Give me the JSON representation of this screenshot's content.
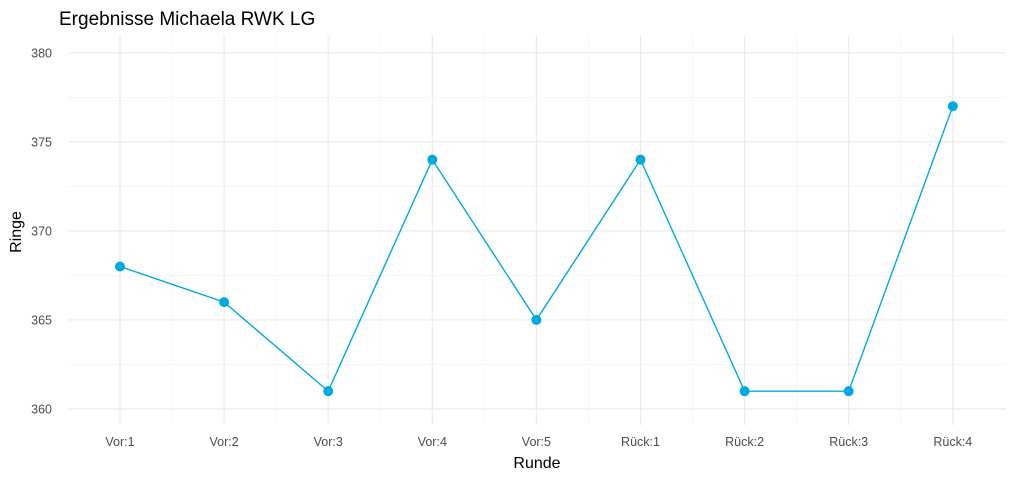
{
  "chart_data": {
    "type": "line",
    "title": "Ergebnisse Michaela RWK LG",
    "xlabel": "Runde",
    "ylabel": "Ringe",
    "categories": [
      "Vor:1",
      "Vor:2",
      "Vor:3",
      "Vor:4",
      "Vor:5",
      "Rück:1",
      "Rück:2",
      "Rück:3",
      "Rück:4"
    ],
    "series": [
      {
        "values": [
          368,
          366,
          361,
          374,
          365,
          374,
          361,
          361,
          377
        ]
      }
    ],
    "ylim": [
      360,
      380
    ],
    "yticks": [
      360,
      365,
      370,
      375,
      380
    ],
    "grid": true,
    "colors": {
      "series": "#00a9e0"
    }
  }
}
